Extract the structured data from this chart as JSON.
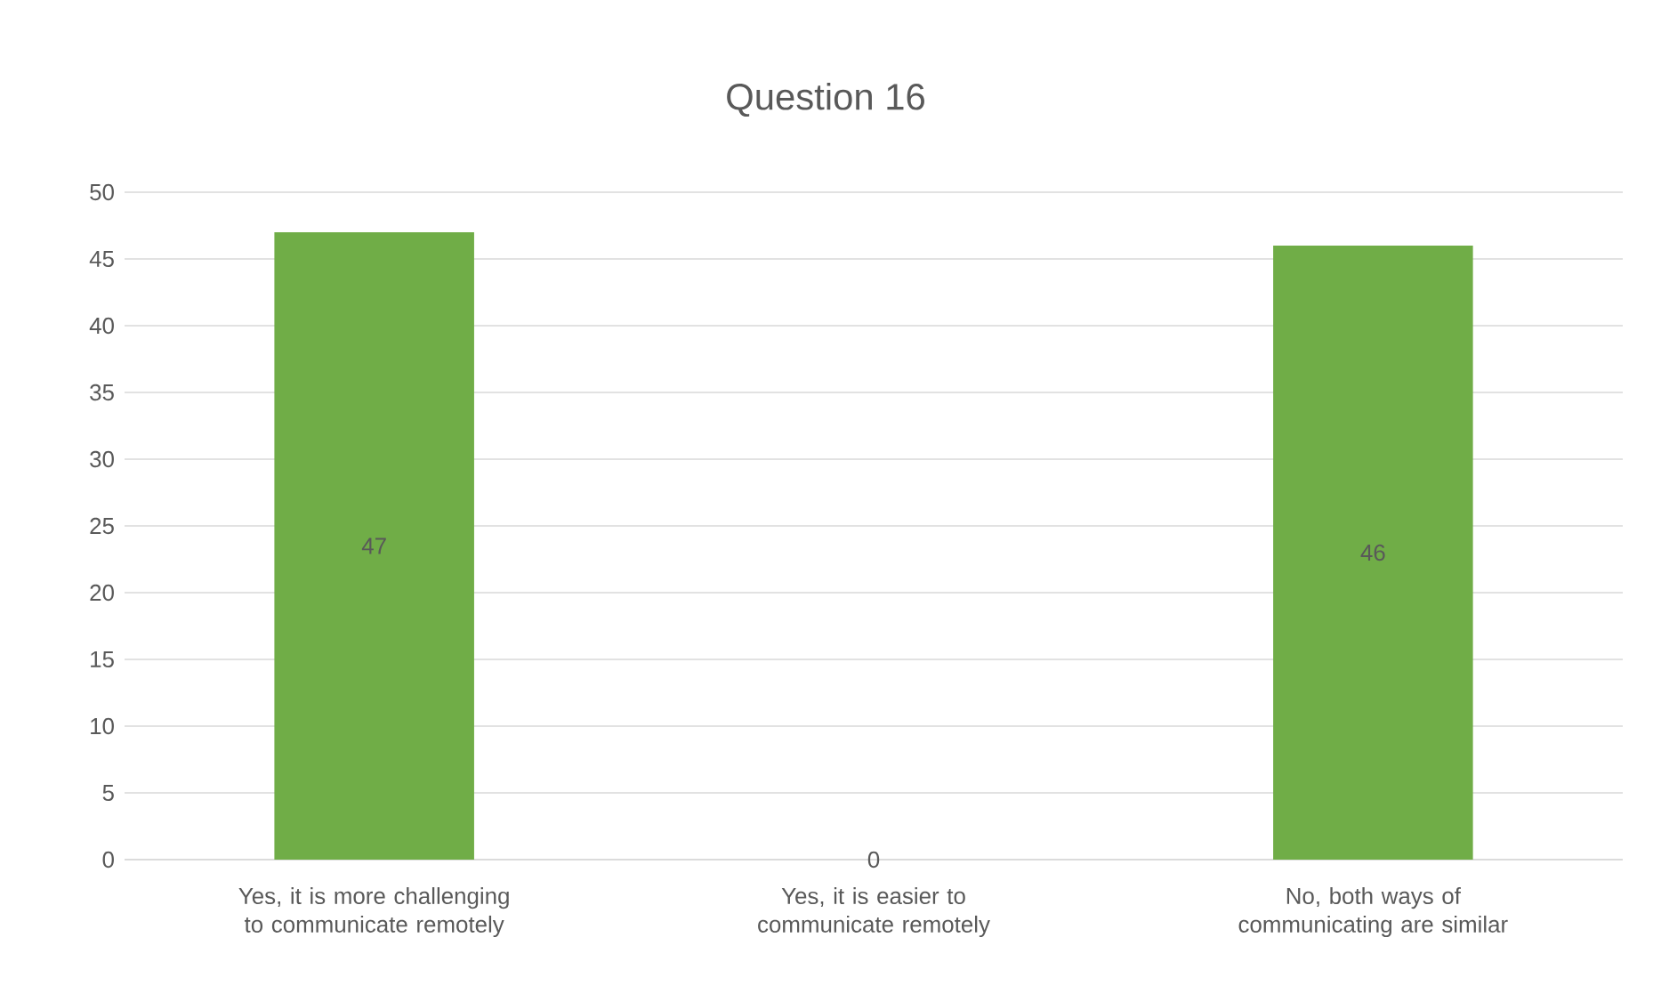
{
  "chart_data": {
    "type": "bar",
    "title": "Question 16",
    "categories": [
      "Yes, it is more challenging to communicate remotely",
      "Yes, it is easier to communicate remotely",
      "No, both ways of communicating are similar"
    ],
    "values": [
      47,
      0,
      46
    ],
    "color": "#70ad47",
    "ylim": [
      0,
      50
    ],
    "yticks": [
      0,
      5,
      10,
      15,
      20,
      25,
      30,
      35,
      40,
      45,
      50
    ],
    "grid": "y",
    "data_labels": true
  }
}
